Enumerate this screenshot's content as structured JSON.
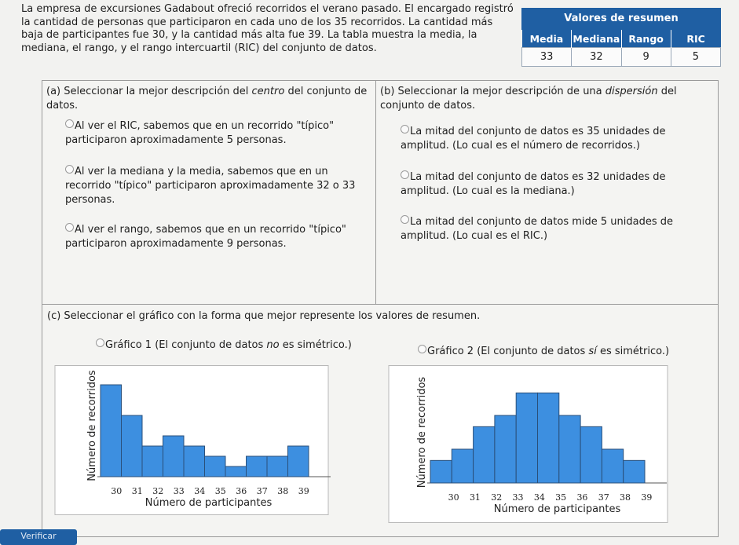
{
  "intro": {
    "text": "La empresa de excursiones Gadabout ofreció recorridos el verano pasado. El encargado registró la cantidad de personas que participaron en cada uno de los 35 recorridos. La cantidad más baja de participantes fue 30, y la cantidad más alta fue 39. La tabla muestra la media, la mediana, el rango, y el rango intercuartil (RIC) del conjunto de datos."
  },
  "summary": {
    "title": "Valores de resumen",
    "headers": [
      "Media",
      "Mediana",
      "Rango",
      "RIC"
    ],
    "values": [
      "33",
      "32",
      "9",
      "5"
    ]
  },
  "part_a": {
    "prefix": "(a) Seleccionar la mejor descripción del ",
    "emph": "centro",
    "suffix": " del conjunto de datos.",
    "options": [
      "Al ver el RIC, sabemos que en un recorrido \"típico\" participaron aproximadamente 5 personas.",
      "Al ver la mediana y la media, sabemos que en un recorrido \"típico\" participaron aproximadamente 32 o 33 personas.",
      "Al ver el rango, sabemos que en un recorrido \"típico\" participaron aproximadamente 9 personas."
    ]
  },
  "part_b": {
    "prefix": "(b) Seleccionar la mejor descripción de una ",
    "emph": "dispersión",
    "suffix": " del conjunto de datos.",
    "options": [
      "La mitad del conjunto de datos es 35 unidades de amplitud. (Lo cual es el número de recorridos.)",
      "La mitad del conjunto de datos es 32 unidades de amplitud. (Lo cual es la mediana.)",
      "La mitad del conjunto de datos mide 5 unidades de amplitud. (Lo cual es el RIC.)"
    ]
  },
  "part_c": {
    "title": "(c) Seleccionar el gráfico con la forma que mejor represente los valores de resumen.",
    "option1": {
      "prefix": "Gráfico 1 (El conjunto de datos ",
      "emph": "no",
      "suffix": " es simétrico.)"
    },
    "option2": {
      "prefix": "Gráfico 2 (El conjunto de datos ",
      "emph": "sí",
      "suffix": " es simétrico.)"
    }
  },
  "chart_data": [
    {
      "type": "bar",
      "categories": [
        "30",
        "31",
        "32",
        "33",
        "34",
        "35",
        "36",
        "37",
        "38",
        "39"
      ],
      "values": [
        9,
        6,
        3,
        4,
        3,
        2,
        1,
        2,
        2,
        3
      ],
      "xlabel": "Número de participantes",
      "ylabel": "Número de recorridos",
      "ylim": [
        0,
        10
      ],
      "bar_color": "#3d8fe0"
    },
    {
      "type": "bar",
      "categories": [
        "30",
        "31",
        "32",
        "33",
        "34",
        "35",
        "36",
        "37",
        "38",
        "39"
      ],
      "values": [
        2,
        3,
        5,
        6,
        8,
        8,
        6,
        5,
        3,
        2
      ],
      "xlabel": "Número de participantes",
      "ylabel": "Número de recorridos",
      "ylim": [
        0,
        9
      ],
      "bar_color": "#3d8fe0"
    }
  ],
  "footer": {
    "verify_label": "Verificar"
  }
}
